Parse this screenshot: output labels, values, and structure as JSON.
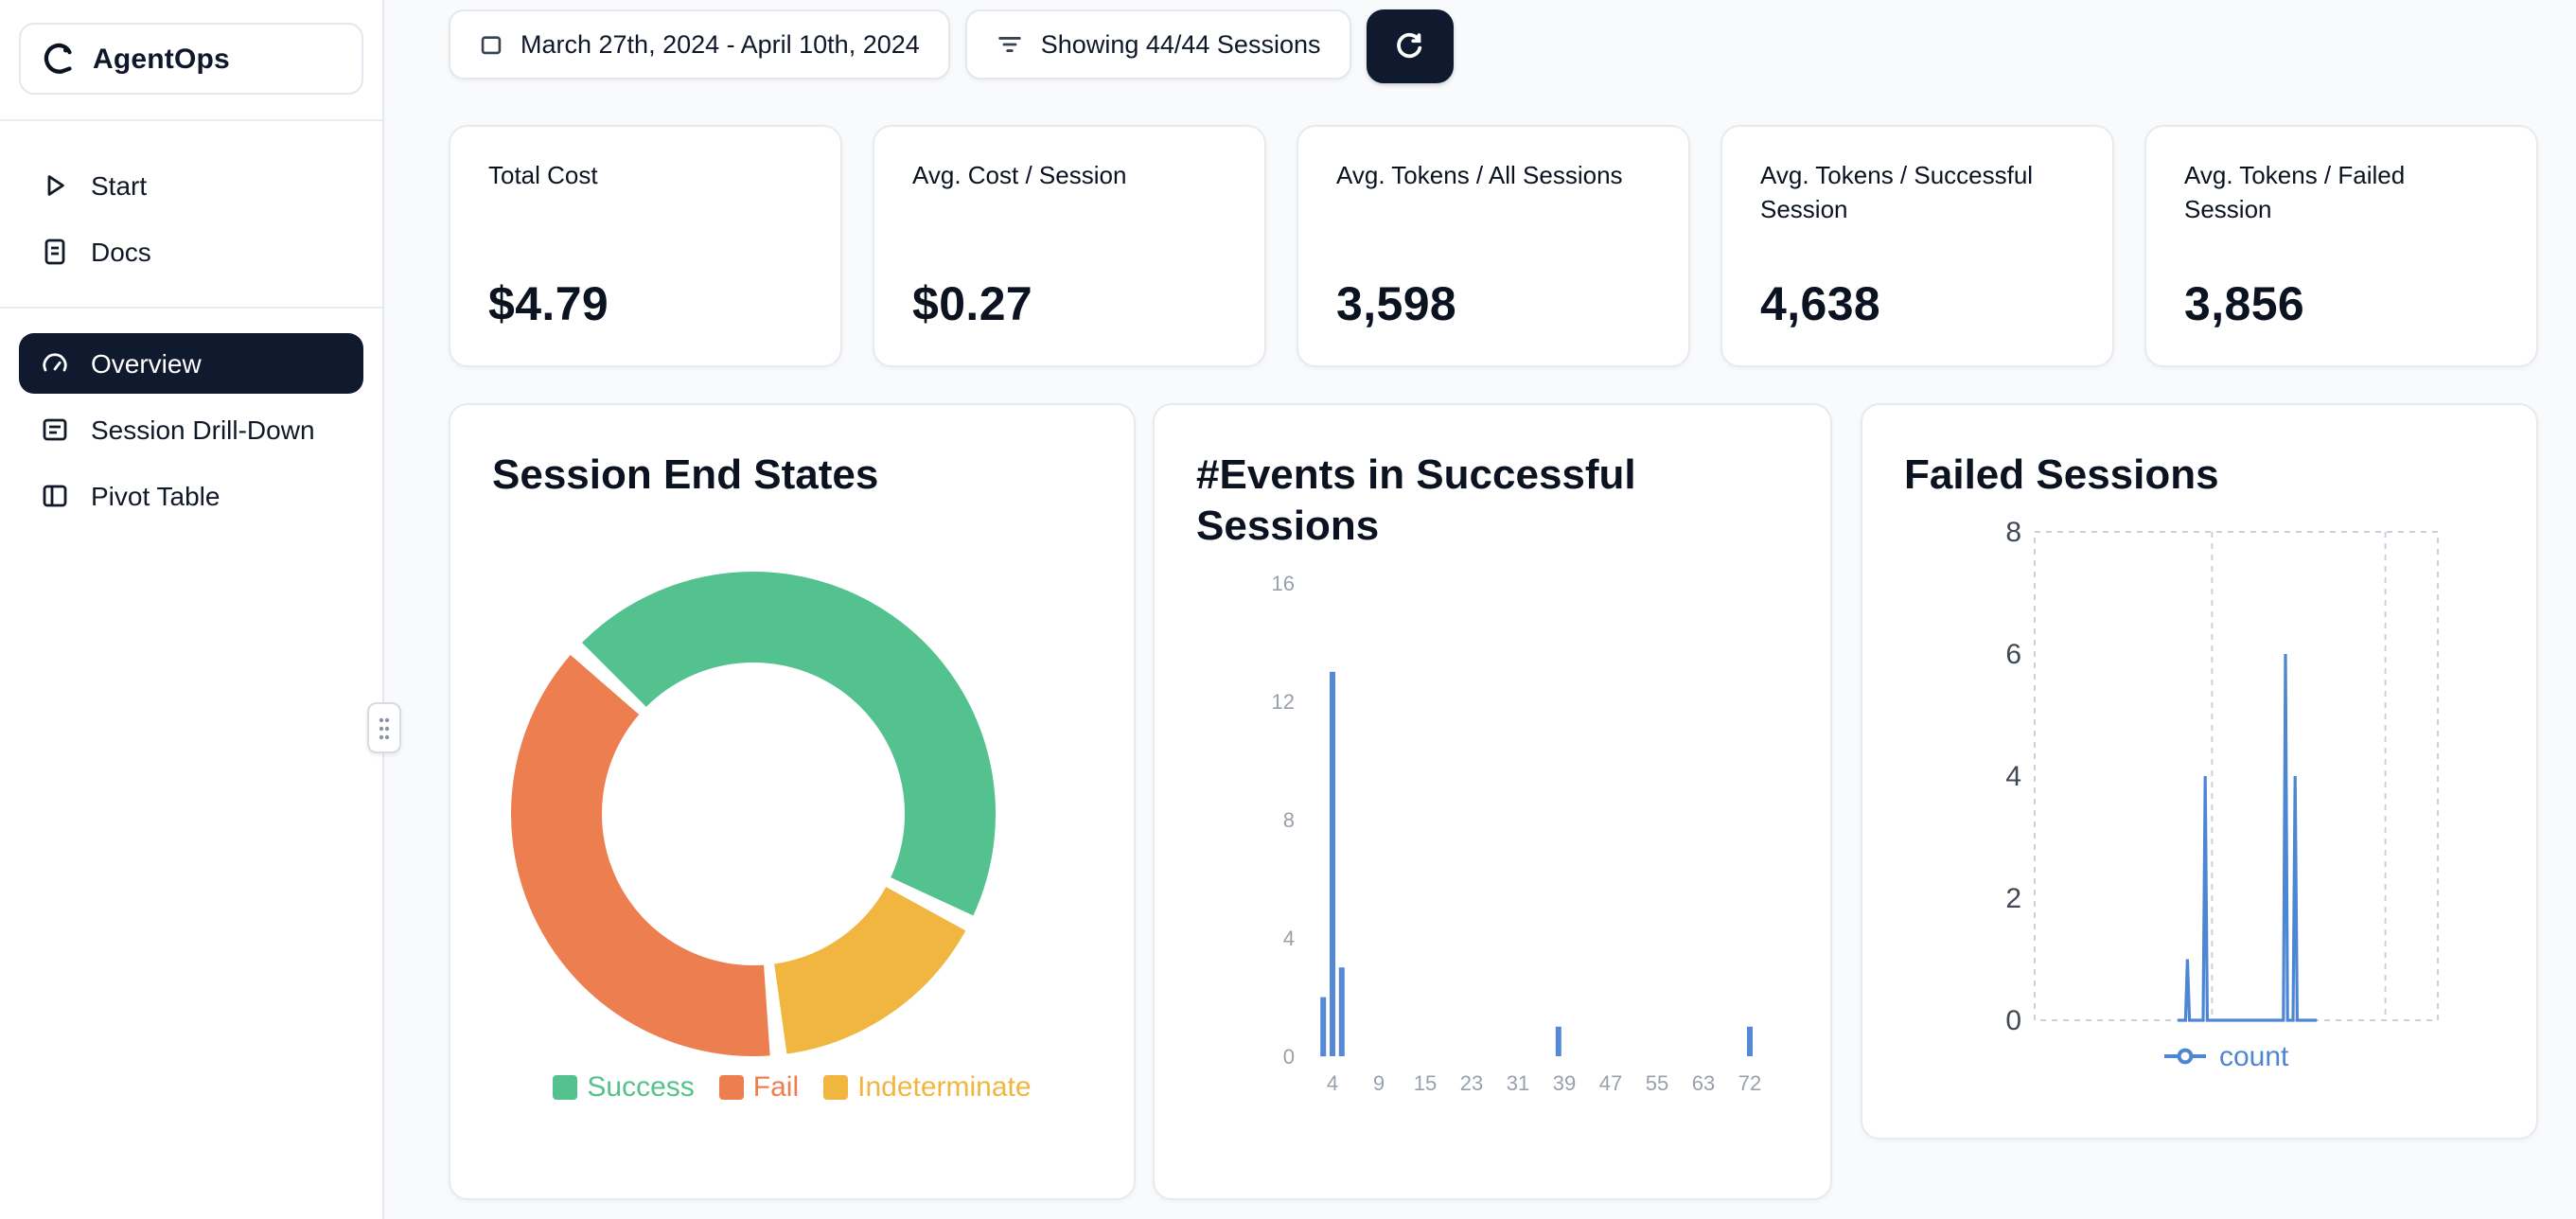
{
  "sidebar": {
    "brand": "AgentOps",
    "items": [
      {
        "label": "Start"
      },
      {
        "label": "Docs"
      },
      {
        "label": "Overview",
        "active": true
      },
      {
        "label": "Session Drill-Down"
      },
      {
        "label": "Pivot Table"
      }
    ]
  },
  "toolbar": {
    "date_range": "March 27th, 2024 - April 10th, 2024",
    "sessions_filter": "Showing 44/44 Sessions"
  },
  "stats": [
    {
      "label": "Total Cost",
      "value": "$4.79"
    },
    {
      "label": "Avg. Cost / Session",
      "value": "$0.27"
    },
    {
      "label": "Avg. Tokens / All Sessions",
      "value": "3,598"
    },
    {
      "label": "Avg. Tokens / Successful Session",
      "value": "4,638"
    },
    {
      "label": "Avg. Tokens / Failed Session",
      "value": "3,856"
    }
  ],
  "colors": {
    "accent_dark": "#0f1a2e",
    "success": "#53c28f",
    "fail": "#ed7e50",
    "indeterminate": "#f0b63f",
    "chart_blue": "#5589d8"
  },
  "chart_data": [
    {
      "type": "pie",
      "title": "Session End States",
      "donut": true,
      "start_angle_deg": -47,
      "slices": [
        {
          "label": "Success",
          "pct": 45.5,
          "color": "#53c28f"
        },
        {
          "label": "Indeterminate",
          "pct": 15.9,
          "color": "#f0b63f"
        },
        {
          "label": "Fail",
          "pct": 38.6,
          "color": "#ed7e50"
        }
      ],
      "legend": [
        "Success",
        "Fail",
        "Indeterminate"
      ],
      "legend_position": "bottom"
    },
    {
      "type": "bar",
      "title": "#Events in Successful Sessions",
      "x_tick_labels": [
        4,
        9,
        15,
        23,
        31,
        39,
        47,
        55,
        63,
        72
      ],
      "y_ticks": [
        0,
        4,
        8,
        12,
        16
      ],
      "ylim": [
        0,
        16
      ],
      "bars": [
        {
          "x": 3,
          "count": 2
        },
        {
          "x": 4,
          "count": 13
        },
        {
          "x": 5,
          "count": 3
        },
        {
          "x": 38,
          "count": 1
        },
        {
          "x": 72,
          "count": 1
        }
      ],
      "bar_color": "#5589d8",
      "grid": false
    },
    {
      "type": "line",
      "title": "Failed Sessions",
      "y_ticks": [
        0,
        2,
        4,
        6,
        8
      ],
      "ylim": [
        0,
        8
      ],
      "grid": "dashed-box",
      "series": [
        {
          "name": "count",
          "color": "#4d86d2",
          "points_norm": [
            [
              0.355,
              0
            ],
            [
              0.374,
              0
            ],
            [
              0.379,
              1
            ],
            [
              0.384,
              0
            ],
            [
              0.418,
              0
            ],
            [
              0.423,
              4
            ],
            [
              0.428,
              0
            ],
            [
              0.617,
              0
            ],
            [
              0.622,
              6
            ],
            [
              0.627,
              0
            ],
            [
              0.641,
              0
            ],
            [
              0.646,
              4
            ],
            [
              0.651,
              0
            ],
            [
              0.7,
              0
            ]
          ]
        }
      ],
      "legend": "count",
      "legend_position": "bottom"
    }
  ]
}
